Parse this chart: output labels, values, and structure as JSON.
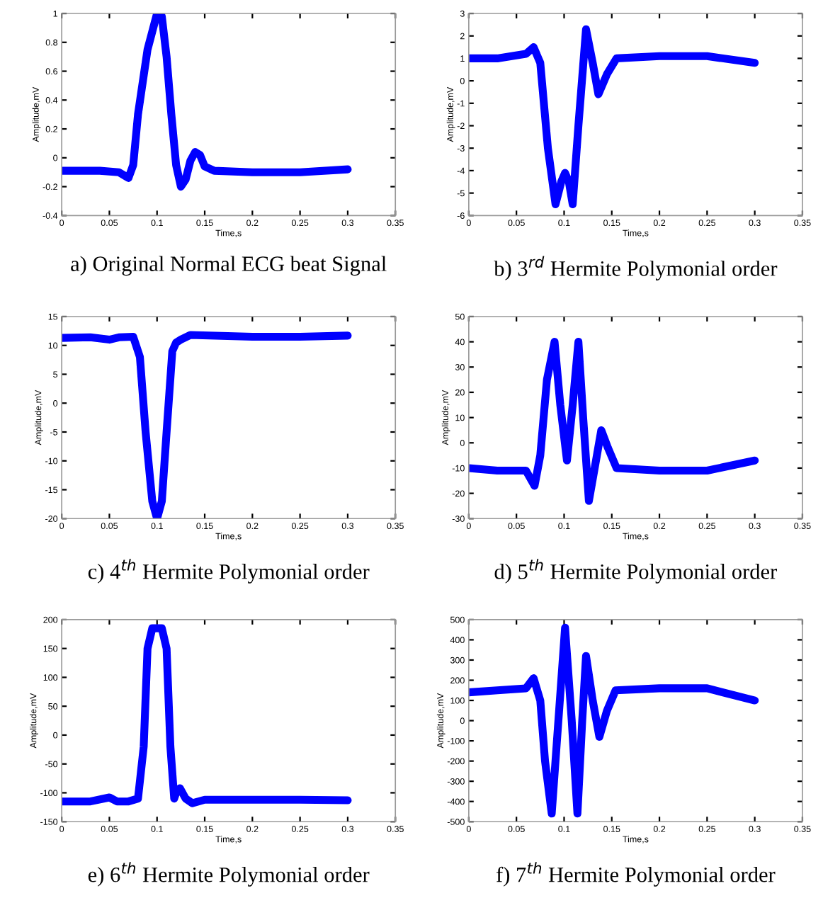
{
  "chart_data": [
    {
      "type": "line",
      "title": "a) Original Normal ECG beat Signal",
      "xlabel": "Time,s",
      "ylabel": "Amplitude,mV",
      "xlim": [
        0,
        0.35
      ],
      "xticks": [
        0,
        0.05,
        0.1,
        0.15,
        0.2,
        0.25,
        0.3,
        0.35
      ],
      "ylim": [
        -0.4,
        1
      ],
      "yticks": [
        -0.4,
        -0.2,
        0,
        0.2,
        0.4,
        0.6,
        0.8,
        1
      ],
      "series": [
        {
          "color": "#0000ff",
          "x": [
            0,
            0.02,
            0.04,
            0.06,
            0.065,
            0.07,
            0.075,
            0.08,
            0.09,
            0.1,
            0.105,
            0.11,
            0.115,
            0.12,
            0.125,
            0.13,
            0.135,
            0.14,
            0.145,
            0.15,
            0.16,
            0.2,
            0.25,
            0.3
          ],
          "values": [
            -0.09,
            -0.09,
            -0.09,
            -0.1,
            -0.12,
            -0.14,
            -0.05,
            0.3,
            0.75,
            1.0,
            0.98,
            0.7,
            0.3,
            -0.05,
            -0.2,
            -0.15,
            -0.02,
            0.04,
            0.02,
            -0.06,
            -0.09,
            -0.1,
            -0.1,
            -0.08
          ]
        }
      ]
    },
    {
      "type": "line",
      "title": "b) 3$^{rd}$ Hermite Polymonial order",
      "xlabel": "Time,s",
      "ylabel": "Amplitude,mV",
      "xlim": [
        0,
        0.35
      ],
      "xticks": [
        0,
        0.05,
        0.1,
        0.15,
        0.2,
        0.25,
        0.3,
        0.35
      ],
      "ylim": [
        -6,
        3
      ],
      "yticks": [
        -6,
        -5,
        -4,
        -3,
        -2,
        -1,
        0,
        1,
        2,
        3
      ],
      "series": [
        {
          "color": "#0000ff",
          "x": [
            0,
            0.03,
            0.06,
            0.068,
            0.075,
            0.083,
            0.091,
            0.097,
            0.101,
            0.105,
            0.109,
            0.115,
            0.123,
            0.13,
            0.136,
            0.145,
            0.155,
            0.2,
            0.25,
            0.3
          ],
          "values": [
            1.0,
            1.0,
            1.2,
            1.5,
            0.8,
            -3,
            -5.5,
            -4.5,
            -4.1,
            -4.5,
            -5.5,
            -2,
            2.3,
            0.8,
            -0.6,
            0.3,
            1.0,
            1.1,
            1.1,
            0.8
          ]
        }
      ]
    },
    {
      "type": "line",
      "title": "c) 4$^{th}$ Hermite Polymonial order",
      "xlabel": "Time,s",
      "ylabel": "Amplitude,mV",
      "xlim": [
        0,
        0.35
      ],
      "xticks": [
        0,
        0.05,
        0.1,
        0.15,
        0.2,
        0.25,
        0.3,
        0.35
      ],
      "ylim": [
        -20,
        15
      ],
      "yticks": [
        -20,
        -15,
        -10,
        -5,
        0,
        5,
        10,
        15
      ],
      "series": [
        {
          "color": "#0000ff",
          "x": [
            0,
            0.03,
            0.05,
            0.06,
            0.075,
            0.082,
            0.088,
            0.095,
            0.1,
            0.105,
            0.11,
            0.116,
            0.12,
            0.125,
            0.135,
            0.2,
            0.25,
            0.3
          ],
          "values": [
            11.3,
            11.4,
            11.0,
            11.4,
            11.5,
            8,
            -5,
            -17,
            -20,
            -17,
            -5,
            9,
            10.5,
            11,
            11.8,
            11.5,
            11.5,
            11.7
          ]
        }
      ]
    },
    {
      "type": "line",
      "title": "d) 5$^{th}$ Hermite Polymonial order",
      "xlabel": "Time,s",
      "ylabel": "Amplitude,mV",
      "xlim": [
        0,
        0.35
      ],
      "xticks": [
        0,
        0.05,
        0.1,
        0.15,
        0.2,
        0.25,
        0.3,
        0.35
      ],
      "ylim": [
        -30,
        50
      ],
      "yticks": [
        -30,
        -20,
        -10,
        0,
        10,
        20,
        30,
        40,
        50
      ],
      "series": [
        {
          "color": "#0000ff",
          "x": [
            0,
            0.03,
            0.06,
            0.069,
            0.075,
            0.082,
            0.09,
            0.096,
            0.103,
            0.109,
            0.115,
            0.12,
            0.126,
            0.133,
            0.139,
            0.146,
            0.155,
            0.2,
            0.25,
            0.3
          ],
          "values": [
            -10,
            -11,
            -11,
            -17,
            -5,
            25,
            40,
            15,
            -7,
            15,
            40,
            10,
            -23,
            -8,
            5,
            -2,
            -10,
            -11,
            -11,
            -7
          ]
        }
      ]
    },
    {
      "type": "line",
      "title": "e) 6$^{th}$ Hermite Polymonial order",
      "xlabel": "Time,s",
      "ylabel": "Amplitude,mV",
      "xlim": [
        0,
        0.35
      ],
      "xticks": [
        0,
        0.05,
        0.1,
        0.15,
        0.2,
        0.25,
        0.3,
        0.35
      ],
      "ylim": [
        -150,
        200
      ],
      "yticks": [
        -150,
        -100,
        -50,
        0,
        50,
        100,
        150,
        200
      ],
      "series": [
        {
          "color": "#0000ff",
          "x": [
            0,
            0.03,
            0.05,
            0.058,
            0.07,
            0.08,
            0.086,
            0.09,
            0.095,
            0.105,
            0.11,
            0.114,
            0.118,
            0.12,
            0.124,
            0.13,
            0.137,
            0.15,
            0.2,
            0.25,
            0.3
          ],
          "values": [
            -115,
            -115,
            -108,
            -115,
            -115,
            -110,
            -20,
            150,
            185,
            185,
            150,
            -20,
            -110,
            -100,
            -92,
            -110,
            -118,
            -112,
            -112,
            -112,
            -113
          ]
        }
      ]
    },
    {
      "type": "line",
      "title": "f) 7$^{th}$ Hermite Polymonial order",
      "xlabel": "Time,s",
      "ylabel": "Amplitude,mV",
      "xlim": [
        0,
        0.35
      ],
      "xticks": [
        0,
        0.05,
        0.1,
        0.15,
        0.2,
        0.25,
        0.3,
        0.35
      ],
      "ylim": [
        -500,
        500
      ],
      "yticks": [
        -500,
        -400,
        -300,
        -200,
        -100,
        0,
        100,
        200,
        300,
        400,
        500
      ],
      "series": [
        {
          "color": "#0000ff",
          "x": [
            0,
            0.03,
            0.06,
            0.068,
            0.075,
            0.08,
            0.087,
            0.094,
            0.101,
            0.108,
            0.114,
            0.119,
            0.123,
            0.13,
            0.137,
            0.145,
            0.154,
            0.2,
            0.25,
            0.3
          ],
          "values": [
            140,
            150,
            160,
            210,
            100,
            -200,
            -460,
            0,
            460,
            0,
            -460,
            0,
            320,
            100,
            -80,
            50,
            150,
            160,
            160,
            100
          ]
        }
      ]
    }
  ]
}
